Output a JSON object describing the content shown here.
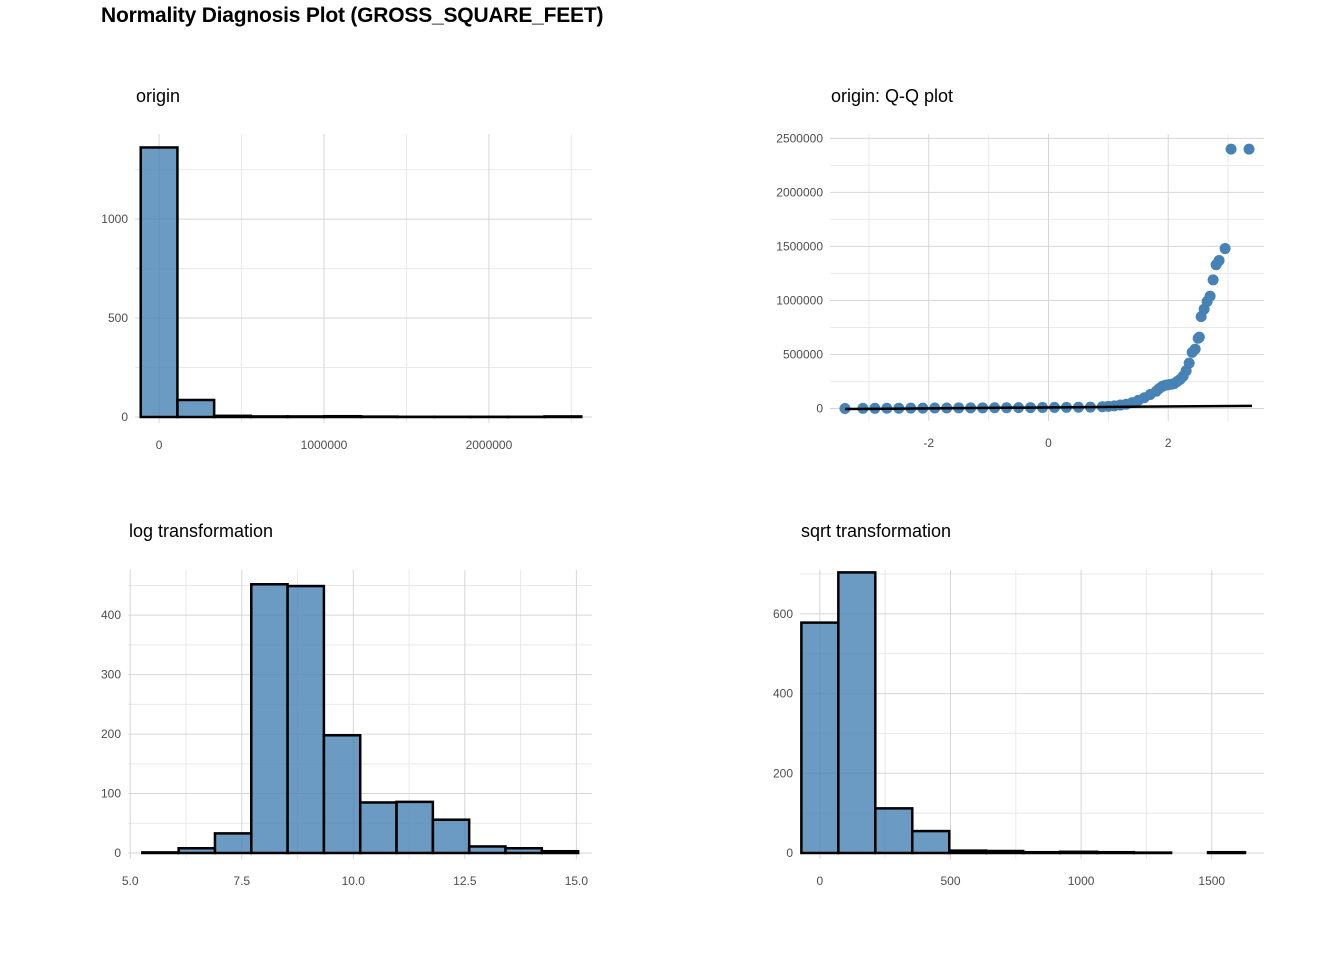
{
  "title": "Normality Diagnosis Plot (GROSS_SQUARE_FEET)",
  "colors": {
    "fill": "#4682b4",
    "outline": "#000000",
    "grid": "#d6d6d6"
  },
  "chart_data": [
    {
      "id": "origin",
      "type": "bar",
      "title": "origin",
      "xlabel": "",
      "ylabel": "",
      "grid": true,
      "xlim": [
        -146000,
        2625000
      ],
      "ylim": [
        0,
        1430
      ],
      "x_major_ticks": [
        0,
        1000000,
        2000000
      ],
      "x_tick_labels": [
        "0",
        "1000000",
        "2000000"
      ],
      "x_minor_ticks": [
        500000,
        1500000,
        2500000
      ],
      "y_major_ticks": [
        0,
        500,
        1000
      ],
      "y_tick_labels": [
        "0",
        "500",
        "1000"
      ],
      "y_minor_ticks": [
        250,
        750,
        1250
      ],
      "bin_width": 222600,
      "bins_start": [
        -111300,
        111300,
        333900,
        556500,
        779100,
        1001700,
        1224300,
        1446900,
        1669500,
        1892100,
        2114700,
        2337300
      ],
      "values": [
        1362,
        86,
        6,
        3,
        3,
        4,
        2,
        1,
        1,
        1,
        1,
        3
      ]
    },
    {
      "id": "qq",
      "type": "scatter",
      "title": "origin: Q-Q plot",
      "xlabel": "",
      "ylabel": "",
      "grid": true,
      "xlim": [
        -3.65,
        3.6
      ],
      "ylim": [
        -60000,
        2540000
      ],
      "x_major_ticks": [
        -2,
        0,
        2
      ],
      "x_tick_labels": [
        "-2",
        "0",
        "2"
      ],
      "x_minor_ticks": [
        -3,
        -1,
        1,
        3
      ],
      "y_major_ticks": [
        0,
        500000,
        1000000,
        1500000,
        2000000,
        2500000
      ],
      "y_tick_labels": [
        "0",
        "500000",
        "1000000",
        "1500000",
        "2000000",
        "2500000"
      ],
      "y_minor_ticks": [
        250000,
        750000,
        1250000,
        1750000,
        2250000
      ],
      "points": [
        [
          -3.4,
          0
        ],
        [
          -3.1,
          1000
        ],
        [
          -2.9,
          2000
        ],
        [
          -2.7,
          2500
        ],
        [
          -2.5,
          3000
        ],
        [
          -2.3,
          3500
        ],
        [
          -2.1,
          4000
        ],
        [
          -1.9,
          4500
        ],
        [
          -1.7,
          5000
        ],
        [
          -1.5,
          5500
        ],
        [
          -1.3,
          6000
        ],
        [
          -1.1,
          6500
        ],
        [
          -0.9,
          7000
        ],
        [
          -0.7,
          7500
        ],
        [
          -0.5,
          8000
        ],
        [
          -0.3,
          8500
        ],
        [
          -0.1,
          9000
        ],
        [
          0.1,
          10000
        ],
        [
          0.3,
          11000
        ],
        [
          0.5,
          12000
        ],
        [
          0.7,
          13000
        ],
        [
          0.9,
          16000
        ],
        [
          1.0,
          20000
        ],
        [
          1.1,
          25000
        ],
        [
          1.2,
          32000
        ],
        [
          1.3,
          40000
        ],
        [
          1.4,
          55000
        ],
        [
          1.5,
          75000
        ],
        [
          1.6,
          100000
        ],
        [
          1.7,
          130000
        ],
        [
          1.8,
          160000
        ],
        [
          1.85,
          185000
        ],
        [
          1.9,
          205000
        ],
        [
          1.95,
          215000
        ],
        [
          2.0,
          220000
        ],
        [
          2.05,
          225000
        ],
        [
          2.1,
          230000
        ],
        [
          2.15,
          250000
        ],
        [
          2.2,
          270000
        ],
        [
          2.25,
          300000
        ],
        [
          2.3,
          350000
        ],
        [
          2.35,
          420000
        ],
        [
          2.4,
          520000
        ],
        [
          2.45,
          550000
        ],
        [
          2.5,
          650000
        ],
        [
          2.52,
          660000
        ],
        [
          2.55,
          850000
        ],
        [
          2.6,
          920000
        ],
        [
          2.65,
          990000
        ],
        [
          2.7,
          1040000
        ],
        [
          2.75,
          1190000
        ],
        [
          2.8,
          1330000
        ],
        [
          2.85,
          1370000
        ],
        [
          2.95,
          1480000
        ],
        [
          3.05,
          2400000
        ],
        [
          3.35,
          2400000
        ]
      ],
      "line": {
        "x": [
          -3.4,
          3.4
        ],
        "y": [
          -5000,
          25000
        ]
      }
    },
    {
      "id": "log",
      "type": "bar",
      "title": "log transformation",
      "xlabel": "",
      "ylabel": "",
      "grid": true,
      "xlim": [
        4.95,
        15.35
      ],
      "ylim": [
        0,
        476
      ],
      "x_major_ticks": [
        5.0,
        7.5,
        10.0,
        12.5,
        15.0
      ],
      "x_tick_labels": [
        "5.0",
        "7.5",
        "10.0",
        "12.5",
        "15.0"
      ],
      "x_minor_ticks": [
        6.25,
        8.75,
        11.25,
        13.75
      ],
      "y_major_ticks": [
        0,
        100,
        200,
        300,
        400
      ],
      "y_tick_labels": [
        "0",
        "100",
        "200",
        "300",
        "400"
      ],
      "y_minor_ticks": [
        50,
        150,
        250,
        350,
        450
      ],
      "bin_width": 0.814,
      "bins_start": [
        5.271,
        6.085,
        6.899,
        7.713,
        8.527,
        9.341,
        10.155,
        10.969,
        11.783,
        12.597,
        13.411,
        14.225
      ],
      "values": [
        1,
        8,
        33,
        452,
        449,
        198,
        85,
        86,
        56,
        11,
        8,
        3
      ]
    },
    {
      "id": "sqrt",
      "type": "bar",
      "title": "sqrt transformation",
      "xlabel": "",
      "ylabel": "",
      "grid": true,
      "xlim": [
        -76,
        1700
      ],
      "ylim": [
        0,
        710
      ],
      "x_major_ticks": [
        0,
        500,
        1000,
        1500
      ],
      "x_tick_labels": [
        "0",
        "500",
        "1000",
        "1500"
      ],
      "x_minor_ticks": [
        250,
        750,
        1250
      ],
      "y_major_ticks": [
        0,
        200,
        400,
        600
      ],
      "y_tick_labels": [
        "0",
        "200",
        "400",
        "600"
      ],
      "y_minor_ticks": [
        100,
        300,
        500,
        700
      ],
      "bin_width": 141.5,
      "bins_start": [
        -70.75,
        70.75,
        212.25,
        353.75,
        495.25,
        636.75,
        778.25,
        919.75,
        1061.25,
        1202.75,
        1344.25,
        1485.75
      ],
      "values": [
        578,
        704,
        112,
        55,
        6,
        5,
        2,
        3,
        2,
        1,
        0,
        2
      ]
    }
  ]
}
